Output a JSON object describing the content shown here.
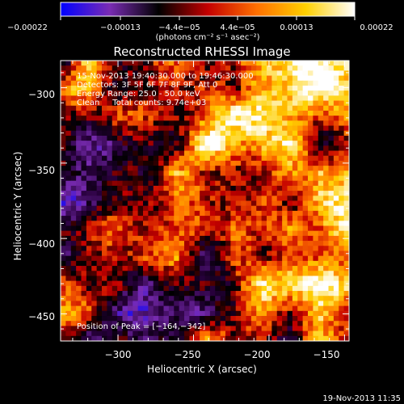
{
  "chart_data": {
    "type": "heatmap",
    "title": "Reconstructed RHESSI Image",
    "xlabel": "Heliocentric X (arcsec)",
    "ylabel": "Heliocentric Y (arcsec)",
    "xlim": [
      -338,
      -147
    ],
    "ylim": [
      -468,
      -282
    ],
    "x_ticks": [
      -300,
      -250,
      -200,
      -150
    ],
    "y_ticks": [
      -300,
      -350,
      -400,
      -450
    ],
    "x_tick_labels": [
      "−300",
      "−250",
      "−200",
      "−150"
    ],
    "y_tick_labels": [
      "−300",
      "−350",
      "−400",
      "−450"
    ],
    "colorbar": {
      "range": [
        -0.00022,
        0.00022
      ],
      "tick_labels": [
        "−0.00022",
        "−0.00013",
        "−4.4e−05",
        "4.4e−05",
        "0.00013",
        "0.00022"
      ],
      "units": "(photons cm⁻² s⁻¹ asec⁻²)",
      "colors": [
        "#0000ff",
        "#7a2cb4",
        "#000000",
        "#c40000",
        "#ff7000",
        "#ffd000",
        "#ffffff"
      ]
    },
    "annotations": [
      "15-Nov-2013 19:40:30.000 to 19:46:30.000",
      "Detectors: 3F 5F 6F 7F 8F 9F, Att 0",
      "Energy Range: 25.0 - 50.0 keV",
      "Clean     Total counts: 9.74e+03"
    ],
    "peak_label": "Position of Peak = [−164,−342]",
    "peak": [
      -164,
      -342
    ],
    "grid": false,
    "legend": "colorbar top"
  },
  "footer_date": "19-Nov-2013 11:35"
}
